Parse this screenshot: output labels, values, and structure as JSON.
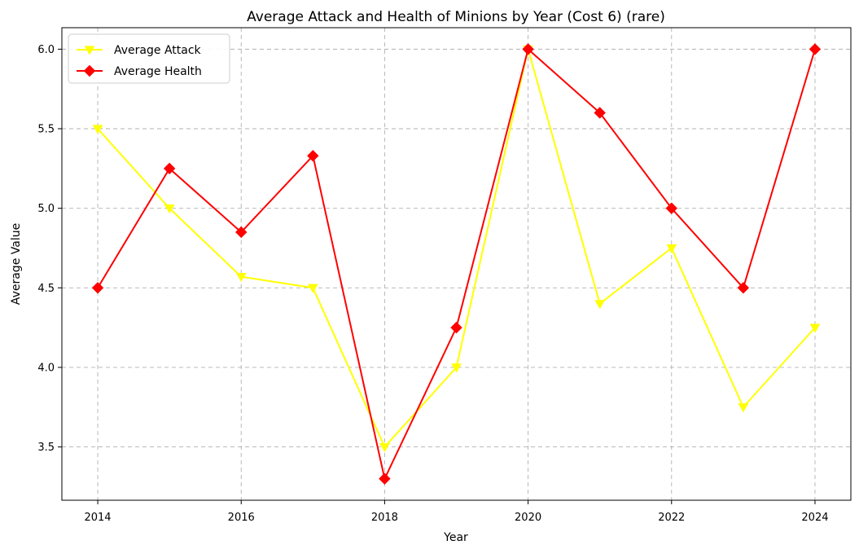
{
  "chart_data": {
    "type": "line",
    "title": "Average Attack and Health of Minions by Year (Cost 6) (rare)",
    "xlabel": "Year",
    "ylabel": "Average Value",
    "x": [
      2014,
      2015,
      2016,
      2017,
      2018,
      2019,
      2020,
      2021,
      2022,
      2023,
      2024
    ],
    "xticks": [
      "2014",
      "2016",
      "2018",
      "2020",
      "2022",
      "2024"
    ],
    "yticks": [
      "3.5",
      "4.0",
      "4.5",
      "5.0",
      "5.5",
      "6.0"
    ],
    "xlim": [
      2013.5,
      2024.5
    ],
    "ylim": [
      3.165,
      6.135
    ],
    "grid": true,
    "legend": "top-left",
    "series": [
      {
        "name": "Average Attack",
        "color": "#ffff00",
        "marker": "triangle-down",
        "values": [
          5.5,
          5.0,
          4.57,
          4.5,
          3.5,
          4.0,
          6.0,
          4.4,
          4.75,
          3.75,
          4.25
        ]
      },
      {
        "name": "Average Health",
        "color": "#ff0000",
        "marker": "diamond",
        "values": [
          4.5,
          5.25,
          4.85,
          5.33,
          3.3,
          4.25,
          6.0,
          5.6,
          5.0,
          4.5,
          6.0
        ]
      }
    ]
  }
}
